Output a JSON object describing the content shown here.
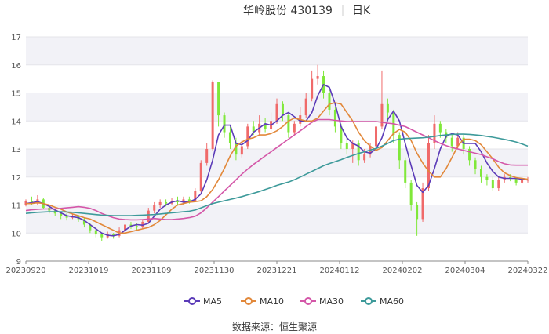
{
  "chart_data": {
    "type": "candlestick",
    "title": "华岭股份 430139",
    "period_label": "日K",
    "source_label": "数据来源：",
    "source_name": "恒生聚源",
    "ylim": [
      9,
      17
    ],
    "y_ticks": [
      9,
      10,
      11,
      12,
      13,
      14,
      15,
      16,
      17
    ],
    "x_ticks": [
      "20230920",
      "20231019",
      "20231109",
      "20231130",
      "20231221",
      "20240112",
      "20240202",
      "20240304",
      "20240322"
    ],
    "grid": true,
    "legend_position": "bottom",
    "up_color": "#f06a6a",
    "down_color": "#80e83a",
    "series": [
      {
        "name": "MA5",
        "color": "#5b3bb8",
        "values": [
          11.05,
          11.08,
          11.12,
          11.05,
          10.95,
          10.82,
          10.72,
          10.62,
          10.58,
          10.55,
          10.45,
          10.3,
          10.15,
          10.0,
          9.92,
          9.9,
          9.95,
          10.1,
          10.25,
          10.3,
          10.28,
          10.35,
          10.6,
          10.85,
          11.0,
          11.1,
          11.15,
          11.1,
          11.12,
          11.2,
          11.4,
          11.9,
          12.6,
          13.5,
          13.85,
          13.85,
          13.2,
          13.15,
          13.3,
          13.6,
          13.75,
          13.9,
          13.85,
          14.0,
          14.2,
          14.3,
          14.15,
          14.0,
          14.0,
          14.3,
          14.9,
          15.3,
          15.2,
          14.6,
          13.8,
          13.4,
          13.2,
          13.1,
          12.9,
          12.85,
          13.0,
          13.4,
          14.05,
          14.35,
          14.0,
          13.2,
          12.4,
          11.7,
          11.45,
          11.7,
          12.3,
          13.0,
          13.45,
          13.55,
          13.5,
          13.2,
          13.2,
          13.2,
          12.9,
          12.5,
          12.2,
          12.0,
          11.95,
          11.95,
          11.95,
          11.92,
          11.9
        ]
      },
      {
        "name": "MA10",
        "color": "#e2883a",
        "values": [
          11.05,
          11.05,
          11.08,
          11.05,
          11.0,
          10.92,
          10.85,
          10.75,
          10.68,
          10.62,
          10.55,
          10.5,
          10.4,
          10.3,
          10.2,
          10.1,
          10.0,
          10.0,
          10.05,
          10.1,
          10.15,
          10.2,
          10.3,
          10.45,
          10.65,
          10.85,
          11.0,
          11.05,
          11.1,
          11.12,
          11.15,
          11.3,
          11.55,
          11.9,
          12.3,
          12.75,
          13.1,
          13.25,
          13.35,
          13.4,
          13.5,
          13.5,
          13.55,
          13.65,
          13.8,
          14.0,
          14.1,
          14.05,
          14.0,
          14.0,
          14.1,
          14.35,
          14.6,
          14.65,
          14.6,
          14.3,
          14.0,
          13.6,
          13.3,
          13.1,
          12.95,
          13.05,
          13.3,
          13.55,
          13.7,
          13.6,
          13.3,
          12.85,
          12.5,
          12.2,
          12.0,
          12.0,
          12.3,
          12.7,
          13.1,
          13.35,
          13.35,
          13.3,
          13.15,
          12.9,
          12.65,
          12.35,
          12.15,
          12.05,
          11.98,
          11.95,
          11.92
        ]
      },
      {
        "name": "MA30",
        "color": "#d457a8",
        "values": [
          10.8,
          10.83,
          10.85,
          10.86,
          10.86,
          10.86,
          10.88,
          10.9,
          10.92,
          10.94,
          10.92,
          10.88,
          10.8,
          10.7,
          10.62,
          10.55,
          10.5,
          10.48,
          10.47,
          10.47,
          10.48,
          10.5,
          10.52,
          10.5,
          10.48,
          10.48,
          10.5,
          10.52,
          10.55,
          10.6,
          10.72,
          10.9,
          11.1,
          11.3,
          11.5,
          11.7,
          11.9,
          12.1,
          12.28,
          12.45,
          12.6,
          12.75,
          12.9,
          13.05,
          13.2,
          13.35,
          13.5,
          13.65,
          13.8,
          13.95,
          14.05,
          14.05,
          14.05,
          14.02,
          14.0,
          13.98,
          13.98,
          13.98,
          13.98,
          13.98,
          13.98,
          13.95,
          13.92,
          13.9,
          13.85,
          13.8,
          13.7,
          13.6,
          13.5,
          13.4,
          13.3,
          13.2,
          13.12,
          13.05,
          13.0,
          12.95,
          12.9,
          12.85,
          12.8,
          12.72,
          12.65,
          12.55,
          12.47,
          12.43,
          12.42,
          12.42,
          12.42
        ]
      },
      {
        "name": "MA60",
        "color": "#3d9a9a",
        "values": [
          10.7,
          10.72,
          10.74,
          10.75,
          10.76,
          10.76,
          10.76,
          10.75,
          10.74,
          10.72,
          10.7,
          10.68,
          10.66,
          10.64,
          10.63,
          10.62,
          10.62,
          10.62,
          10.62,
          10.63,
          10.64,
          10.65,
          10.66,
          10.68,
          10.7,
          10.72,
          10.74,
          10.76,
          10.78,
          10.82,
          10.9,
          10.98,
          11.05,
          11.1,
          11.15,
          11.2,
          11.25,
          11.3,
          11.36,
          11.42,
          11.48,
          11.55,
          11.62,
          11.7,
          11.76,
          11.82,
          11.9,
          12.0,
          12.1,
          12.2,
          12.3,
          12.4,
          12.48,
          12.55,
          12.62,
          12.7,
          12.77,
          12.84,
          12.9,
          12.96,
          13.02,
          13.1,
          13.2,
          13.3,
          13.35,
          13.37,
          13.38,
          13.39,
          13.4,
          13.42,
          13.45,
          13.48,
          13.5,
          13.52,
          13.53,
          13.53,
          13.52,
          13.5,
          13.48,
          13.45,
          13.42,
          13.38,
          13.34,
          13.3,
          13.25,
          13.18,
          13.1
        ]
      }
    ],
    "candles": [
      [
        11.0,
        11.15,
        11.2,
        10.95
      ],
      [
        11.15,
        11.05,
        11.3,
        11.0
      ],
      [
        11.05,
        11.2,
        11.35,
        11.0
      ],
      [
        11.2,
        10.9,
        11.25,
        10.85
      ],
      [
        10.9,
        10.8,
        10.95,
        10.7
      ],
      [
        10.8,
        10.7,
        10.85,
        10.6
      ],
      [
        10.7,
        10.6,
        10.75,
        10.5
      ],
      [
        10.6,
        10.55,
        10.7,
        10.45
      ],
      [
        10.55,
        10.6,
        10.7,
        10.5
      ],
      [
        10.6,
        10.5,
        10.65,
        10.4
      ],
      [
        10.5,
        10.3,
        10.55,
        10.2
      ],
      [
        10.3,
        10.1,
        10.35,
        10.0
      ],
      [
        10.1,
        9.95,
        10.15,
        9.85
      ],
      [
        9.95,
        9.85,
        10.0,
        9.7
      ],
      [
        9.85,
        9.95,
        10.05,
        9.8
      ],
      [
        9.95,
        9.9,
        10.0,
        9.8
      ],
      [
        9.9,
        10.1,
        10.2,
        9.85
      ],
      [
        10.1,
        10.3,
        10.45,
        10.05
      ],
      [
        10.3,
        10.25,
        10.4,
        10.15
      ],
      [
        10.25,
        10.2,
        10.35,
        10.1
      ],
      [
        10.2,
        10.4,
        10.5,
        10.15
      ],
      [
        10.4,
        10.8,
        10.9,
        10.35
      ],
      [
        10.8,
        11.0,
        11.1,
        10.7
      ],
      [
        11.0,
        11.1,
        11.2,
        10.9
      ],
      [
        11.1,
        11.05,
        11.2,
        10.95
      ],
      [
        11.05,
        11.15,
        11.25,
        11.0
      ],
      [
        11.15,
        11.1,
        11.3,
        11.0
      ],
      [
        11.1,
        11.2,
        11.3,
        11.0
      ],
      [
        11.2,
        11.15,
        11.3,
        11.05
      ],
      [
        11.15,
        11.5,
        11.6,
        11.1
      ],
      [
        11.5,
        12.5,
        12.6,
        11.45
      ],
      [
        12.5,
        13.0,
        13.2,
        12.4
      ],
      [
        13.0,
        15.4,
        15.45,
        12.95
      ],
      [
        15.4,
        14.2,
        15.3,
        13.8
      ],
      [
        14.2,
        13.6,
        14.3,
        13.4
      ],
      [
        13.6,
        13.2,
        13.8,
        13.0
      ],
      [
        13.2,
        12.8,
        13.4,
        12.6
      ],
      [
        12.8,
        13.1,
        13.3,
        12.7
      ],
      [
        13.1,
        13.8,
        13.9,
        13.0
      ],
      [
        13.8,
        13.6,
        14.0,
        13.5
      ],
      [
        13.6,
        13.9,
        14.2,
        13.5
      ],
      [
        13.9,
        13.7,
        14.1,
        13.6
      ],
      [
        13.7,
        14.0,
        14.3,
        13.6
      ],
      [
        14.0,
        14.6,
        14.8,
        13.9
      ],
      [
        14.6,
        14.2,
        14.7,
        14.0
      ],
      [
        14.2,
        13.6,
        14.3,
        13.4
      ],
      [
        13.6,
        13.9,
        14.0,
        13.5
      ],
      [
        13.9,
        14.2,
        14.5,
        13.8
      ],
      [
        14.2,
        14.8,
        15.0,
        14.1
      ],
      [
        14.8,
        15.5,
        15.8,
        14.7
      ],
      [
        15.5,
        15.6,
        16.0,
        15.3
      ],
      [
        15.6,
        15.0,
        15.8,
        14.8
      ],
      [
        15.0,
        14.4,
        15.1,
        14.2
      ],
      [
        14.4,
        13.8,
        14.5,
        13.6
      ],
      [
        13.8,
        13.2,
        13.9,
        13.0
      ],
      [
        13.2,
        13.0,
        13.4,
        12.8
      ],
      [
        13.0,
        13.2,
        13.3,
        12.5
      ],
      [
        13.2,
        12.6,
        13.3,
        12.4
      ],
      [
        12.6,
        12.8,
        13.0,
        12.5
      ],
      [
        12.8,
        13.1,
        13.2,
        12.7
      ],
      [
        13.1,
        13.8,
        13.9,
        13.0
      ],
      [
        13.8,
        14.6,
        15.8,
        13.7
      ],
      [
        14.6,
        14.3,
        14.8,
        14.0
      ],
      [
        14.3,
        13.5,
        14.4,
        13.2
      ],
      [
        13.5,
        12.6,
        13.6,
        12.3
      ],
      [
        12.6,
        11.8,
        12.7,
        11.6
      ],
      [
        11.8,
        11.0,
        11.9,
        10.8
      ],
      [
        11.0,
        10.5,
        11.1,
        9.9
      ],
      [
        10.5,
        11.6,
        11.8,
        10.4
      ],
      [
        11.6,
        13.2,
        13.5,
        11.5
      ],
      [
        13.2,
        13.9,
        14.2,
        13.0
      ],
      [
        13.9,
        13.6,
        14.0,
        13.4
      ],
      [
        13.6,
        13.4,
        13.7,
        13.2
      ],
      [
        13.4,
        13.1,
        13.5,
        12.9
      ],
      [
        13.1,
        13.4,
        13.6,
        13.0
      ],
      [
        13.4,
        13.0,
        13.5,
        12.8
      ],
      [
        13.0,
        12.6,
        13.1,
        12.4
      ],
      [
        12.6,
        12.3,
        12.7,
        12.1
      ],
      [
        12.3,
        12.0,
        12.4,
        11.8
      ],
      [
        12.0,
        11.9,
        12.1,
        11.7
      ],
      [
        11.9,
        11.6,
        12.0,
        11.5
      ],
      [
        11.6,
        11.9,
        12.0,
        11.5
      ],
      [
        11.9,
        12.0,
        12.1,
        11.8
      ],
      [
        12.0,
        11.95,
        12.1,
        11.85
      ],
      [
        11.95,
        11.8,
        12.0,
        11.7
      ],
      [
        11.8,
        11.9,
        12.0,
        11.75
      ],
      [
        11.9,
        11.9,
        12.0,
        11.8
      ]
    ]
  }
}
